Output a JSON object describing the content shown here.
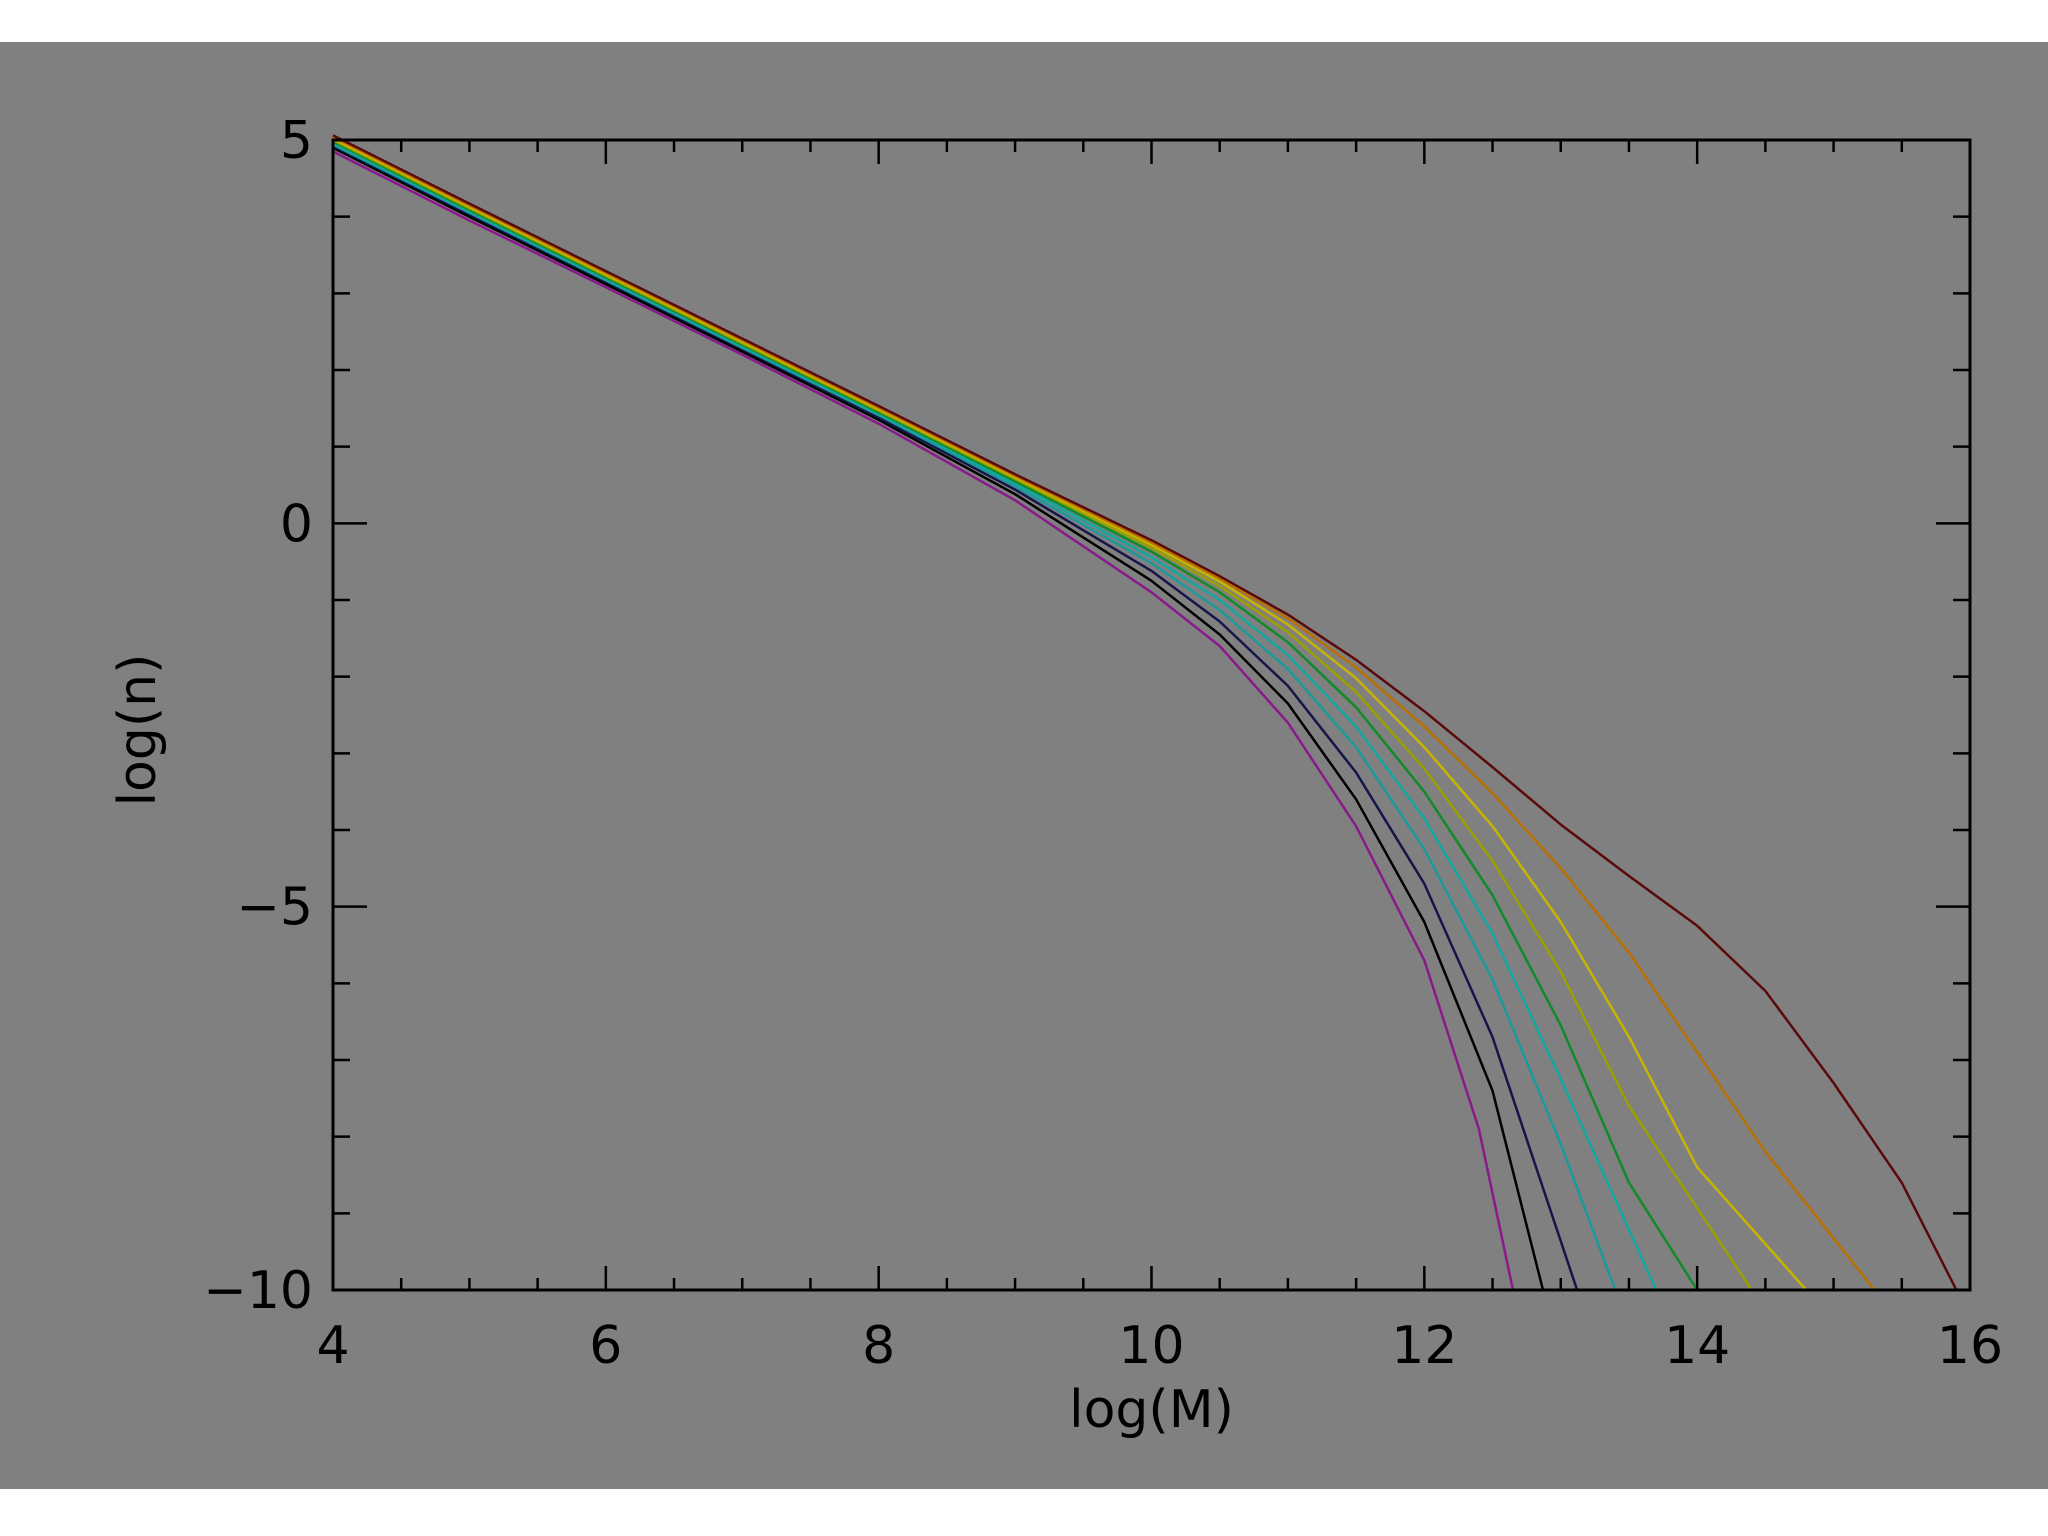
{
  "colors": {
    "background": "#808080",
    "page": "#ffffff",
    "axes": "#000000"
  },
  "chart_data": {
    "type": "line",
    "title": "",
    "xlabel": "log(M)",
    "ylabel": "log(n)",
    "xlim": [
      4,
      16
    ],
    "ylim": [
      -10,
      5
    ],
    "xticks": [
      4,
      6,
      8,
      10,
      12,
      14,
      16
    ],
    "yticks": [
      5,
      0,
      -5,
      -10
    ],
    "xtick_labels": [
      "4",
      "6",
      "8",
      "10",
      "12",
      "14",
      "16"
    ],
    "ytick_labels": [
      "5",
      "0",
      "−5",
      "−10"
    ],
    "grid": false,
    "legend": false,
    "series": [
      {
        "color": "#8a1a8a",
        "values": [
          [
            4,
            4.85
          ],
          [
            5,
            3.95
          ],
          [
            6,
            3.08
          ],
          [
            7,
            2.2
          ],
          [
            8,
            1.3
          ],
          [
            9,
            0.3
          ],
          [
            10,
            -0.9
          ],
          [
            10.5,
            -1.6
          ],
          [
            11,
            -2.6
          ],
          [
            11.5,
            -3.95
          ],
          [
            12,
            -5.7
          ],
          [
            12.4,
            -7.9
          ],
          [
            12.65,
            -10
          ]
        ]
      },
      {
        "color": "#000000",
        "values": [
          [
            4,
            4.9
          ],
          [
            5,
            4.0
          ],
          [
            6,
            3.12
          ],
          [
            7,
            2.24
          ],
          [
            8,
            1.35
          ],
          [
            9,
            0.38
          ],
          [
            10,
            -0.75
          ],
          [
            10.5,
            -1.45
          ],
          [
            11,
            -2.35
          ],
          [
            11.5,
            -3.6
          ],
          [
            12,
            -5.2
          ],
          [
            12.5,
            -7.4
          ],
          [
            12.87,
            -10
          ]
        ]
      },
      {
        "color": "#15154a",
        "values": [
          [
            4,
            4.92
          ],
          [
            5,
            4.03
          ],
          [
            6,
            3.15
          ],
          [
            7,
            2.27
          ],
          [
            8,
            1.38
          ],
          [
            9,
            0.44
          ],
          [
            10,
            -0.62
          ],
          [
            10.5,
            -1.28
          ],
          [
            11,
            -2.12
          ],
          [
            11.5,
            -3.25
          ],
          [
            12,
            -4.7
          ],
          [
            12.5,
            -6.7
          ],
          [
            13.12,
            -10
          ]
        ]
      },
      {
        "color": "#1a9a9a",
        "values": [
          [
            4,
            4.94
          ],
          [
            5,
            4.05
          ],
          [
            6,
            3.17
          ],
          [
            7,
            2.29
          ],
          [
            8,
            1.41
          ],
          [
            9,
            0.48
          ],
          [
            10,
            -0.52
          ],
          [
            10.5,
            -1.13
          ],
          [
            11,
            -1.9
          ],
          [
            11.5,
            -2.92
          ],
          [
            12,
            -4.25
          ],
          [
            12.5,
            -5.95
          ],
          [
            13,
            -8.1
          ],
          [
            13.4,
            -10
          ]
        ]
      },
      {
        "color": "#10a8a0",
        "values": [
          [
            4,
            4.96
          ],
          [
            5,
            4.07
          ],
          [
            6,
            3.19
          ],
          [
            7,
            2.31
          ],
          [
            8,
            1.43
          ],
          [
            9,
            0.52
          ],
          [
            10,
            -0.44
          ],
          [
            10.5,
            -1.0
          ],
          [
            11,
            -1.72
          ],
          [
            11.5,
            -2.65
          ],
          [
            12,
            -3.85
          ],
          [
            12.5,
            -5.35
          ],
          [
            13,
            -7.25
          ],
          [
            13.7,
            -10
          ]
        ]
      },
      {
        "color": "#118a2a",
        "values": [
          [
            4,
            4.98
          ],
          [
            5,
            4.09
          ],
          [
            6,
            3.21
          ],
          [
            7,
            2.33
          ],
          [
            8,
            1.45
          ],
          [
            9,
            0.55
          ],
          [
            10,
            -0.37
          ],
          [
            10.5,
            -0.9
          ],
          [
            11,
            -1.55
          ],
          [
            11.5,
            -2.4
          ],
          [
            12,
            -3.5
          ],
          [
            12.5,
            -4.85
          ],
          [
            13,
            -6.55
          ],
          [
            13.5,
            -8.6
          ],
          [
            14,
            -10
          ]
        ]
      },
      {
        "color": "#9aa000",
        "values": [
          [
            4,
            5.0
          ],
          [
            5,
            4.11
          ],
          [
            6,
            3.23
          ],
          [
            7,
            2.35
          ],
          [
            8,
            1.47
          ],
          [
            9,
            0.58
          ],
          [
            10,
            -0.32
          ],
          [
            10.5,
            -0.82
          ],
          [
            11,
            -1.42
          ],
          [
            11.5,
            -2.2
          ],
          [
            12,
            -3.2
          ],
          [
            12.5,
            -4.4
          ],
          [
            13,
            -5.85
          ],
          [
            13.5,
            -7.6
          ],
          [
            14.4,
            -10
          ]
        ]
      },
      {
        "color": "#c8b400",
        "values": [
          [
            4,
            5.02
          ],
          [
            5,
            4.13
          ],
          [
            6,
            3.25
          ],
          [
            7,
            2.37
          ],
          [
            8,
            1.49
          ],
          [
            9,
            0.6
          ],
          [
            10,
            -0.28
          ],
          [
            10.5,
            -0.76
          ],
          [
            11,
            -1.32
          ],
          [
            11.5,
            -2.02
          ],
          [
            12,
            -2.92
          ],
          [
            12.5,
            -3.95
          ],
          [
            13,
            -5.2
          ],
          [
            13.5,
            -6.7
          ],
          [
            14,
            -8.4
          ],
          [
            14.8,
            -10
          ]
        ]
      },
      {
        "color": "#b87000",
        "values": [
          [
            4,
            5.04
          ],
          [
            5,
            4.15
          ],
          [
            6,
            3.27
          ],
          [
            7,
            2.39
          ],
          [
            8,
            1.51
          ],
          [
            9,
            0.62
          ],
          [
            10,
            -0.25
          ],
          [
            10.5,
            -0.72
          ],
          [
            11,
            -1.24
          ],
          [
            11.5,
            -1.88
          ],
          [
            12,
            -2.65
          ],
          [
            12.5,
            -3.52
          ],
          [
            13,
            -4.5
          ],
          [
            13.5,
            -5.6
          ],
          [
            14,
            -6.9
          ],
          [
            14.5,
            -8.2
          ],
          [
            15.3,
            -10
          ]
        ]
      },
      {
        "color": "#5a0a0a",
        "values": [
          [
            4,
            5.06
          ],
          [
            5,
            4.17
          ],
          [
            6,
            3.29
          ],
          [
            7,
            2.41
          ],
          [
            8,
            1.53
          ],
          [
            9,
            0.64
          ],
          [
            10,
            -0.22
          ],
          [
            10.5,
            -0.69
          ],
          [
            11,
            -1.19
          ],
          [
            11.5,
            -1.78
          ],
          [
            12,
            -2.45
          ],
          [
            12.5,
            -3.18
          ],
          [
            13,
            -3.93
          ],
          [
            13.5,
            -4.6
          ],
          [
            14,
            -5.25
          ],
          [
            14.5,
            -6.1
          ],
          [
            15,
            -7.3
          ],
          [
            15.5,
            -8.6
          ],
          [
            15.9,
            -10
          ]
        ]
      }
    ]
  }
}
